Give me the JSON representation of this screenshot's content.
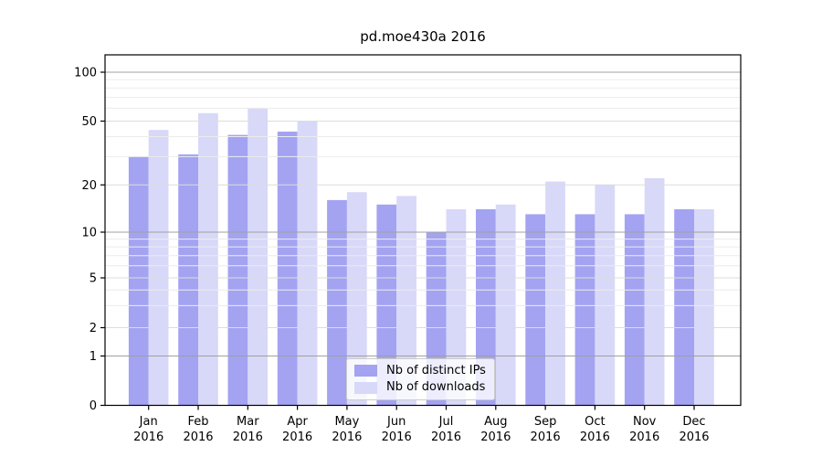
{
  "figure": {
    "title": "pd.moe430a 2016"
  },
  "chart_data": {
    "type": "bar",
    "title": "pd.moe430a 2016",
    "categories": [
      "Jan 2016",
      "Feb 2016",
      "Mar 2016",
      "Apr 2016",
      "May 2016",
      "Jun 2016",
      "Jul 2016",
      "Aug 2016",
      "Sep 2016",
      "Oct 2016",
      "Nov 2016",
      "Dec 2016"
    ],
    "x_months": [
      "Jan",
      "Feb",
      "Mar",
      "Apr",
      "May",
      "Jun",
      "Jul",
      "Aug",
      "Sep",
      "Oct",
      "Nov",
      "Dec"
    ],
    "x_year": "2016",
    "series": [
      {
        "name": "Nb of distinct IPs",
        "key": "distinct-ips",
        "color": "#a3a3f2",
        "values": [
          30,
          31,
          41,
          43,
          16,
          15,
          10,
          14,
          13,
          13,
          13,
          14
        ]
      },
      {
        "name": "Nb of downloads",
        "key": "downloads",
        "color": "#d8d8f9",
        "values": [
          44,
          56,
          60,
          50,
          18,
          17,
          14,
          15,
          21,
          20,
          22,
          14
        ]
      }
    ],
    "ylabel": "",
    "xlabel": "",
    "yscale": "symlog",
    "yticks": [
      100,
      50,
      20,
      10,
      5,
      2,
      1,
      0
    ],
    "ylim": [
      0,
      128
    ],
    "grid": true,
    "legend_position": "lower center"
  },
  "colors": {
    "distinct_ips": "#a3a3f2",
    "downloads": "#d8d8f9",
    "grid_decade": "#a0a0a0",
    "grid_mid": "#dcdcdc",
    "grid_minor": "#ececec",
    "spine": "#000000",
    "text": "#000000"
  }
}
